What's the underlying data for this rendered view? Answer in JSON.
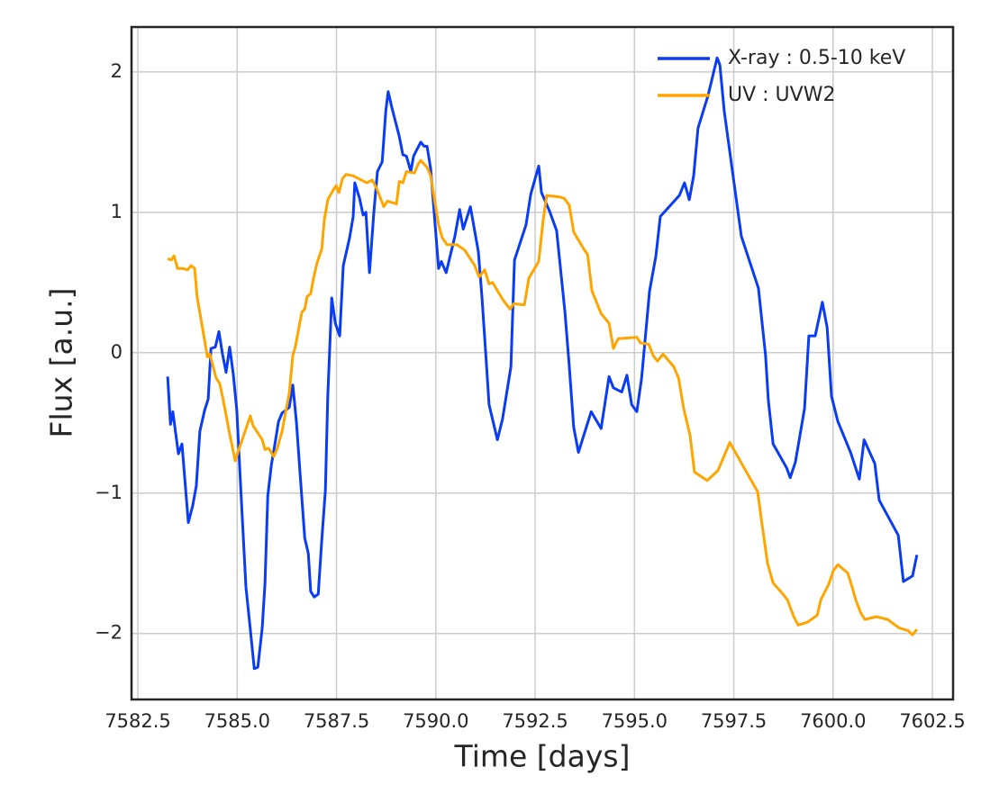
{
  "chart_data": {
    "type": "line",
    "xlabel": "Time [days]",
    "ylabel": "Flux [a.u.]",
    "xlim": [
      7582.34,
      7603.02
    ],
    "ylim": [
      -2.47,
      2.32
    ],
    "xticks": [
      7582.5,
      {
        "value": 7585,
        "label": "7585.0"
      },
      7587.5,
      {
        "value": 7590,
        "label": "7590.0"
      },
      7592.5,
      {
        "value": 7595,
        "label": "7595.0"
      },
      7597.5,
      {
        "value": 7600,
        "label": "7600.0"
      },
      7602.5
    ],
    "yticks": [
      {
        "value": -2,
        "label": "−2"
      },
      {
        "value": -1,
        "label": "−1"
      },
      0,
      1,
      2
    ],
    "grid": true,
    "legend": "upper right",
    "series": [
      {
        "name": "X-ray : 0.5-10 keV",
        "color": "#0a3cf5",
        "x": [
          7583.25,
          7583.32,
          7583.38,
          7583.52,
          7583.61,
          7583.77,
          7583.88,
          7583.97,
          7584.06,
          7584.18,
          7584.27,
          7584.34,
          7584.45,
          7584.54,
          7584.63,
          7584.72,
          7584.81,
          7584.9,
          7584.99,
          7585.09,
          7585.22,
          7585.33,
          7585.43,
          7585.52,
          7585.63,
          7585.7,
          7585.77,
          7585.86,
          7585.95,
          7586.04,
          7586.13,
          7586.31,
          7586.4,
          7586.49,
          7586.58,
          7586.7,
          7586.79,
          7586.85,
          7586.94,
          7587.04,
          7587.13,
          7587.22,
          7587.28,
          7587.38,
          7587.47,
          7587.58,
          7587.67,
          7587.83,
          7587.92,
          7587.96,
          7588.08,
          7588.17,
          7588.24,
          7588.33,
          7588.44,
          7588.53,
          7588.65,
          7588.74,
          7588.8,
          7588.89,
          7589.08,
          7589.17,
          7589.26,
          7589.37,
          7589.44,
          7589.62,
          7589.71,
          7589.78,
          7589.87,
          7589.96,
          7590.07,
          7590.14,
          7590.26,
          7590.48,
          7590.6,
          7590.69,
          7590.87,
          7591.07,
          7591.16,
          7591.25,
          7591.34,
          7591.55,
          7591.68,
          7591.89,
          7591.98,
          7592.27,
          7592.39,
          7592.59,
          7592.66,
          7592.86,
          7593.04,
          7593.25,
          7593.36,
          7593.47,
          7593.59,
          7593.91,
          7594.16,
          7594.36,
          7594.47,
          7594.68,
          7594.81,
          7594.93,
          7595.06,
          7595.18,
          7595.38,
          7595.54,
          7595.65,
          7596.13,
          7596.26,
          7596.38,
          7596.49,
          7596.6,
          7596.85,
          7597.08,
          7597.15,
          7597.26,
          7597.69,
          7598.12,
          7598.3,
          7598.37,
          7598.49,
          7598.83,
          7598.92,
          7599.05,
          7599.28,
          7599.39,
          7599.55,
          7599.73,
          7599.85,
          7599.96,
          7600.12,
          7600.44,
          7600.66,
          7600.78,
          7601.05,
          7601.16,
          7601.64,
          7601.77,
          7602.0,
          7602.11
        ],
        "values": [
          -0.17,
          -0.51,
          -0.42,
          -0.72,
          -0.65,
          -1.21,
          -1.09,
          -0.95,
          -0.56,
          -0.41,
          -0.33,
          0.03,
          0.04,
          0.15,
          -0.01,
          -0.14,
          0.04,
          -0.15,
          -0.41,
          -0.97,
          -1.67,
          -1.97,
          -2.25,
          -2.24,
          -1.96,
          -1.64,
          -1.02,
          -0.8,
          -0.65,
          -0.49,
          -0.43,
          -0.39,
          -0.23,
          -0.49,
          -0.85,
          -1.32,
          -1.43,
          -1.7,
          -1.74,
          -1.72,
          -1.33,
          -0.98,
          -0.31,
          0.39,
          0.21,
          0.12,
          0.62,
          0.82,
          0.97,
          1.21,
          1.1,
          0.98,
          1.0,
          0.57,
          1.0,
          1.29,
          1.36,
          1.72,
          1.86,
          1.75,
          1.54,
          1.41,
          1.4,
          1.29,
          1.4,
          1.5,
          1.47,
          1.47,
          1.31,
          0.99,
          0.6,
          0.65,
          0.57,
          0.83,
          1.02,
          0.88,
          1.04,
          0.72,
          0.4,
          0.02,
          -0.37,
          -0.62,
          -0.47,
          -0.1,
          0.66,
          0.91,
          1.13,
          1.33,
          1.14,
          1.01,
          0.87,
          0.29,
          -0.1,
          -0.53,
          -0.71,
          -0.42,
          -0.54,
          -0.17,
          -0.25,
          -0.28,
          -0.16,
          -0.37,
          -0.42,
          -0.18,
          0.44,
          0.69,
          0.97,
          1.12,
          1.21,
          1.09,
          1.26,
          1.6,
          1.83,
          2.1,
          2.05,
          1.72,
          0.83,
          0.46,
          -0.02,
          -0.34,
          -0.65,
          -0.82,
          -0.89,
          -0.78,
          -0.4,
          0.12,
          0.12,
          0.36,
          0.18,
          -0.31,
          -0.49,
          -0.71,
          -0.9,
          -0.62,
          -0.79,
          -1.05,
          -1.3,
          -1.63,
          -1.59,
          -1.44
        ]
      },
      {
        "name": "UV : UVW2",
        "color": "#ffa500",
        "x": [
          7583.25,
          7583.34,
          7583.41,
          7583.5,
          7583.63,
          7583.75,
          7583.84,
          7583.93,
          7583.99,
          7584.13,
          7584.25,
          7584.31,
          7584.47,
          7584.56,
          7584.65,
          7584.79,
          7584.95,
          7585.04,
          7585.15,
          7585.33,
          7585.4,
          7585.63,
          7585.7,
          7585.79,
          7585.92,
          7586.01,
          7586.13,
          7586.22,
          7586.31,
          7586.4,
          7586.47,
          7586.56,
          7586.63,
          7586.7,
          7586.76,
          7586.85,
          7586.92,
          7587.01,
          7587.13,
          7587.19,
          7587.28,
          7587.4,
          7587.49,
          7587.56,
          7587.65,
          7587.74,
          7587.92,
          7588.26,
          7588.4,
          7588.51,
          7588.69,
          7588.78,
          7589.01,
          7589.08,
          7589.17,
          7589.26,
          7589.46,
          7589.55,
          7589.62,
          7589.78,
          7589.87,
          7589.96,
          7590.07,
          7590.16,
          7590.28,
          7590.53,
          7590.73,
          7590.98,
          7591.09,
          7591.23,
          7591.34,
          7591.43,
          7591.68,
          7591.87,
          7591.96,
          7592.23,
          7592.34,
          7592.59,
          7592.7,
          7592.79,
          7593.11,
          7593.23,
          7593.36,
          7593.47,
          7593.72,
          7593.82,
          7593.93,
          7594.16,
          7594.36,
          7594.47,
          7594.59,
          7595.06,
          7595.15,
          7595.36,
          7595.47,
          7595.58,
          7595.72,
          7595.99,
          7596.11,
          7596.24,
          7596.4,
          7596.51,
          7596.83,
          7597.1,
          7597.22,
          7597.4,
          7597.72,
          7598.1,
          7598.21,
          7598.35,
          7598.49,
          7598.71,
          7598.85,
          7599.01,
          7599.12,
          7599.35,
          7599.6,
          7599.69,
          7599.89,
          7600.01,
          7600.12,
          7600.37,
          7600.48,
          7600.57,
          7600.69,
          7600.8,
          7601.09,
          7601.37,
          7601.66,
          7601.89,
          7602.0,
          7602.11
        ],
        "values": [
          0.67,
          0.66,
          0.69,
          0.6,
          0.6,
          0.59,
          0.62,
          0.6,
          0.4,
          0.17,
          -0.03,
          -0.01,
          -0.18,
          -0.22,
          -0.34,
          -0.55,
          -0.77,
          -0.69,
          -0.6,
          -0.45,
          -0.52,
          -0.62,
          -0.69,
          -0.68,
          -0.74,
          -0.68,
          -0.56,
          -0.42,
          -0.29,
          -0.02,
          0.05,
          0.19,
          0.29,
          0.31,
          0.4,
          0.42,
          0.53,
          0.64,
          0.74,
          0.94,
          1.09,
          1.15,
          1.19,
          1.14,
          1.24,
          1.27,
          1.26,
          1.21,
          1.23,
          1.17,
          1.04,
          1.08,
          1.06,
          1.22,
          1.21,
          1.29,
          1.28,
          1.34,
          1.37,
          1.32,
          1.26,
          1.1,
          0.91,
          0.82,
          0.77,
          0.77,
          0.73,
          0.62,
          0.54,
          0.59,
          0.49,
          0.5,
          0.38,
          0.31,
          0.35,
          0.34,
          0.53,
          0.65,
          0.94,
          1.12,
          1.11,
          1.1,
          1.05,
          0.86,
          0.74,
          0.7,
          0.44,
          0.28,
          0.21,
          0.03,
          0.1,
          0.11,
          0.07,
          0.06,
          -0.02,
          -0.06,
          -0.01,
          -0.1,
          -0.18,
          -0.4,
          -0.59,
          -0.85,
          -0.91,
          -0.84,
          -0.76,
          -0.64,
          -0.8,
          -0.99,
          -1.22,
          -1.5,
          -1.64,
          -1.71,
          -1.76,
          -1.88,
          -1.94,
          -1.92,
          -1.87,
          -1.76,
          -1.65,
          -1.55,
          -1.51,
          -1.57,
          -1.67,
          -1.76,
          -1.85,
          -1.9,
          -1.88,
          -1.9,
          -1.96,
          -1.98,
          -2.01,
          -1.97
        ]
      }
    ]
  }
}
